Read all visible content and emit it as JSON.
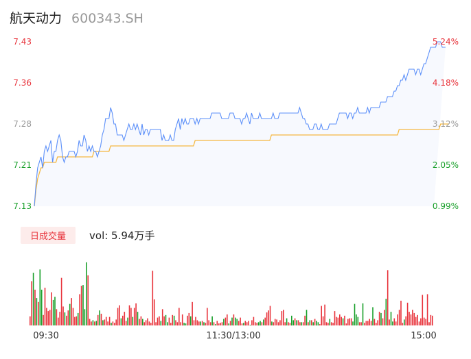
{
  "stock": {
    "name": "航天动力",
    "code": "600343.SH"
  },
  "volume_tab": {
    "label": "日成交量",
    "summary": "vol: 5.94万手"
  },
  "colors": {
    "price_line": "#5b8ff9",
    "avg_line": "#f5b942",
    "up": "#e8333b",
    "down": "#1aa02b",
    "neutral": "#999999",
    "area_fill": "#f7f9fe"
  },
  "chart_data": [
    {
      "type": "line",
      "title": "",
      "y_left_ticks": [
        "7.43",
        "7.36",
        "7.28",
        "7.21",
        "7.13"
      ],
      "y_right_ticks": [
        "5.24%",
        "4.18%",
        "3.12%",
        "2.05%",
        "0.99%"
      ],
      "y_tick_colors": [
        "up",
        "up",
        "neutral",
        "down",
        "down"
      ],
      "ylim": [
        7.13,
        7.43
      ],
      "x_points": 242,
      "series": [
        {
          "key": "price",
          "values": [
            7.13,
            7.17,
            7.2,
            7.21,
            7.22,
            7.2,
            7.23,
            7.24,
            7.23,
            7.24,
            7.25,
            7.21,
            7.23,
            7.23,
            7.25,
            7.26,
            7.25,
            7.22,
            7.21,
            7.22,
            7.22,
            7.23,
            7.23,
            7.23,
            7.23,
            7.22,
            7.23,
            7.25,
            7.24,
            7.24,
            7.26,
            7.25,
            7.23,
            7.24,
            7.23,
            7.24,
            7.23,
            7.23,
            7.22,
            7.23,
            7.24,
            7.26,
            7.27,
            7.29,
            7.29,
            7.29,
            7.31,
            7.3,
            7.28,
            7.28,
            7.26,
            7.26,
            7.26,
            7.26,
            7.25,
            7.26,
            7.27,
            7.28,
            7.27,
            7.27,
            7.28,
            7.27,
            7.28,
            7.27,
            7.26,
            7.28,
            7.26,
            7.27,
            7.27,
            7.26,
            7.27,
            7.27,
            7.27,
            7.27,
            7.27,
            7.27,
            7.27,
            7.25,
            7.26,
            7.25,
            7.25,
            7.25,
            7.26,
            7.25,
            7.25,
            7.27,
            7.28,
            7.29,
            7.27,
            7.29,
            7.28,
            7.29,
            7.28,
            7.28,
            7.29,
            7.29,
            7.29,
            7.28,
            7.29,
            7.28,
            7.29,
            7.29,
            7.29,
            7.29,
            7.29,
            7.29,
            7.29,
            7.3,
            7.3,
            7.3,
            7.3,
            7.3,
            7.3,
            7.29,
            7.29,
            7.29,
            7.29,
            7.29,
            7.3,
            7.3,
            7.3,
            7.29,
            7.29,
            7.29,
            7.29,
            7.28,
            7.29,
            7.29,
            7.3,
            7.29,
            7.28,
            7.3,
            7.29,
            7.29,
            7.29,
            7.29,
            7.3,
            7.29,
            7.29,
            7.29,
            7.29,
            7.29,
            7.29,
            7.29,
            7.3,
            7.29,
            7.29,
            7.29,
            7.3,
            7.3,
            7.3,
            7.3,
            7.3,
            7.3,
            7.3,
            7.3,
            7.3,
            7.3,
            7.3,
            7.3,
            7.31,
            7.3,
            7.29,
            7.29,
            7.28,
            7.28,
            7.27,
            7.27,
            7.27,
            7.28,
            7.28,
            7.27,
            7.27,
            7.28,
            7.27,
            7.27,
            7.27,
            7.27,
            7.28,
            7.28,
            7.28,
            7.28,
            7.28,
            7.29,
            7.3,
            7.3,
            7.3,
            7.3,
            7.3,
            7.29,
            7.3,
            7.3,
            7.29,
            7.3,
            7.3,
            7.31,
            7.3,
            7.3,
            7.3,
            7.3,
            7.3,
            7.31,
            7.3,
            7.31,
            7.31,
            7.31,
            7.31,
            7.31,
            7.31,
            7.32,
            7.32,
            7.32,
            7.32,
            7.33,
            7.33,
            7.33,
            7.33,
            7.34,
            7.34,
            7.35,
            7.35,
            7.36,
            7.36,
            7.37,
            7.36,
            7.37,
            7.38,
            7.38,
            7.38,
            7.38,
            7.37,
            7.38,
            7.38,
            7.37,
            7.38,
            7.39,
            7.39,
            7.4,
            7.41,
            7.42,
            7.42,
            7.42,
            7.42,
            7.43,
            7.43,
            7.43,
            7.42,
            7.42,
            7.42
          ]
        },
        {
          "key": "average",
          "values": [
            7.13,
            7.16,
            7.18,
            7.19,
            7.2,
            7.2,
            7.21,
            7.21,
            7.21,
            7.21,
            7.21,
            7.21,
            7.21,
            7.21,
            7.22,
            7.22,
            7.22,
            7.22,
            7.22,
            7.22,
            7.22,
            7.22,
            7.22,
            7.22,
            7.22,
            7.22,
            7.22,
            7.22,
            7.22,
            7.22,
            7.22,
            7.22,
            7.22,
            7.22,
            7.22,
            7.22,
            7.23,
            7.23,
            7.23,
            7.23,
            7.23,
            7.23,
            7.23,
            7.23,
            7.23,
            7.23,
            7.24,
            7.24,
            7.24,
            7.24,
            7.24,
            7.24,
            7.24,
            7.24,
            7.24,
            7.24,
            7.24,
            7.24,
            7.24,
            7.24,
            7.24,
            7.24,
            7.24,
            7.24,
            7.24,
            7.24,
            7.24,
            7.24,
            7.24,
            7.24,
            7.24,
            7.24,
            7.24,
            7.24,
            7.24,
            7.24,
            7.24,
            7.24,
            7.24,
            7.24,
            7.24,
            7.24,
            7.24,
            7.24,
            7.24,
            7.24,
            7.24,
            7.24,
            7.24,
            7.24,
            7.24,
            7.24,
            7.24,
            7.24,
            7.24,
            7.24,
            7.24,
            7.25,
            7.25,
            7.25,
            7.25,
            7.25,
            7.25,
            7.25,
            7.25,
            7.25,
            7.25,
            7.25,
            7.25,
            7.25,
            7.25,
            7.25,
            7.25,
            7.25,
            7.25,
            7.25,
            7.25,
            7.25,
            7.25,
            7.25,
            7.25,
            7.25,
            7.25,
            7.25,
            7.25,
            7.25,
            7.25,
            7.25,
            7.25,
            7.25,
            7.25,
            7.25,
            7.25,
            7.25,
            7.25,
            7.25,
            7.25,
            7.25,
            7.25,
            7.25,
            7.25,
            7.25,
            7.25,
            7.26,
            7.26,
            7.26,
            7.26,
            7.26,
            7.26,
            7.26,
            7.26,
            7.26,
            7.26,
            7.26,
            7.26,
            7.26,
            7.26,
            7.26,
            7.26,
            7.26,
            7.26,
            7.26,
            7.26,
            7.26,
            7.26,
            7.26,
            7.26,
            7.26,
            7.26,
            7.26,
            7.26,
            7.26,
            7.26,
            7.26,
            7.26,
            7.26,
            7.26,
            7.26,
            7.26,
            7.26,
            7.26,
            7.26,
            7.26,
            7.26,
            7.26,
            7.26,
            7.26,
            7.26,
            7.26,
            7.26,
            7.26,
            7.26,
            7.26,
            7.26,
            7.26,
            7.26,
            7.26,
            7.26,
            7.26,
            7.26,
            7.26,
            7.26,
            7.26,
            7.26,
            7.26,
            7.26,
            7.26,
            7.26,
            7.26,
            7.26,
            7.26,
            7.26,
            7.26,
            7.26,
            7.26,
            7.26,
            7.26,
            7.26,
            7.26,
            7.26,
            7.27,
            7.27,
            7.27,
            7.27,
            7.27,
            7.27,
            7.27,
            7.27,
            7.27,
            7.27,
            7.27,
            7.27,
            7.27,
            7.27,
            7.27,
            7.27,
            7.27,
            7.27,
            7.27,
            7.27,
            7.27,
            7.27,
            7.27,
            7.27,
            7.27,
            7.28,
            7.28,
            7.28,
            7.28,
            7.28,
            7.28
          ]
        }
      ]
    },
    {
      "type": "bar",
      "title": "",
      "x_tick_labels": [
        "09:30",
        "11:30/13:00",
        "15:00"
      ],
      "note": "minute volume bars, relative heights (0-1), color up/down",
      "volume_rel": [
        0.14,
        0.68,
        0.81,
        0.55,
        0.42,
        0.36,
        0.86,
        0.55,
        0.16,
        0.58,
        0.27,
        0.22,
        0.24,
        0.51,
        0.39,
        0.44,
        0.25,
        0.12,
        0.21,
        0.73,
        0.29,
        0.2,
        0.15,
        0.23,
        0.33,
        0.42,
        0.27,
        0.13,
        0.14,
        0.19,
        0.48,
        0.61,
        0.62,
        0.25,
        0.97,
        0.77,
        0.1,
        0.06,
        0.08,
        0.06,
        0.07,
        0.16,
        0.23,
        0.18,
        0.08,
        0.09,
        0.13,
        0.06,
        0.13,
        0.04,
        0.06,
        0.04,
        0.09,
        0.27,
        0.31,
        0.11,
        0.15,
        0.21,
        0.07,
        0.12,
        0.31,
        0.27,
        0.13,
        0.27,
        0.34,
        0.21,
        0.1,
        0.14,
        0.1,
        0.05,
        0.08,
        0.11,
        0.06,
        0.04,
        0.84,
        0.4,
        0.05,
        0.12,
        0.14,
        0.07,
        0.25,
        0.14,
        0.16,
        0.05,
        0.12,
        0.04,
        0.16,
        0.15,
        0.08,
        0.05,
        0.27,
        0.05,
        0.17,
        0.04,
        0.03,
        0.15,
        0.19,
        0.14,
        0.36,
        0.08,
        0.13,
        0.08,
        0.06,
        0.06,
        0.07,
        0.05,
        0.04,
        0.27,
        0.08,
        0.05,
        0.14,
        0.05,
        0.02,
        0.07,
        0.03,
        0.04,
        0.05,
        0.1,
        0.12,
        0.17,
        0.03,
        0.07,
        0.12,
        0.17,
        0.12,
        0.1,
        0.07,
        0.12,
        0.03,
        0.04,
        0.07,
        0.05,
        0.07,
        0.01,
        0.08,
        0.13,
        0.05,
        0.04,
        0.05,
        0.07,
        0.05,
        0.09,
        0.12,
        0.2,
        0.23,
        0.3,
        0.06,
        0.05,
        0.1,
        0.09,
        0.05,
        0.08,
        0.22,
        0.24,
        0.05,
        0.11,
        0.05,
        0.04,
        0.15,
        0.08,
        0.11,
        0.08,
        0.08,
        0.05,
        0.05,
        0.05,
        0.15,
        0.24,
        0.05,
        0.08,
        0.08,
        0.05,
        0.1,
        0.07,
        0.05,
        0.02,
        0.3,
        0.14,
        0.32,
        0.05,
        0.04,
        0.1,
        0.05,
        0.04,
        0.22,
        0.13,
        0.12,
        0.17,
        0.13,
        0.11,
        0.15,
        0.03,
        0.1,
        0.11,
        0.11,
        0.06,
        0.33,
        0.17,
        0.13,
        0.05,
        0.05,
        0.34,
        0.04,
        0.07,
        0.07,
        0.1,
        0.07,
        0.28,
        0.1,
        0.04,
        0.08,
        0.21,
        0.19,
        0.11,
        0.24,
        0.41,
        0.85,
        0.09,
        0.21,
        0.06,
        0.11,
        0.06,
        0.17,
        0.24,
        0.38,
        0.04,
        0.09,
        0.14,
        0.35,
        0.21,
        0.17,
        0.24,
        0.19,
        0.13,
        0.16,
        0.06,
        0.11,
        0.47,
        0.12,
        0.1,
        0.48,
        0.05,
        0.16,
        0.15
      ],
      "volume_dir": [
        "u",
        "u",
        "d",
        "u",
        "d",
        "u",
        "d",
        "d",
        "u",
        "u",
        "u",
        "u",
        "u",
        "u",
        "d",
        "d",
        "u",
        "u",
        "u",
        "u",
        "u",
        "d",
        "u",
        "u",
        "d",
        "u",
        "u",
        "u",
        "u",
        "d",
        "u",
        "u",
        "d",
        "d",
        "d",
        "u",
        "u",
        "u",
        "d",
        "u",
        "d",
        "u",
        "d",
        "u",
        "d",
        "u",
        "u",
        "u",
        "u",
        "d",
        "u",
        "u",
        "u",
        "u",
        "u",
        "d",
        "u",
        "u",
        "u",
        "d",
        "u",
        "u",
        "d",
        "u",
        "u",
        "d",
        "u",
        "u",
        "d",
        "u",
        "u",
        "u",
        "u",
        "u",
        "u",
        "u",
        "u",
        "u",
        "u",
        "d",
        "u",
        "u",
        "d",
        "d",
        "u",
        "u",
        "u",
        "d",
        "u",
        "u",
        "u",
        "u",
        "u",
        "d",
        "d",
        "u",
        "u",
        "d",
        "u",
        "u",
        "u",
        "u",
        "u",
        "d",
        "u",
        "d",
        "u",
        "u",
        "u",
        "u",
        "d",
        "u",
        "d",
        "u",
        "u",
        "u",
        "u",
        "d",
        "u",
        "u",
        "d",
        "u",
        "d",
        "u",
        "d",
        "d",
        "u",
        "u",
        "u",
        "d",
        "u",
        "u",
        "u",
        "d",
        "u",
        "u",
        "u",
        "u",
        "d",
        "d",
        "u",
        "d",
        "u",
        "u",
        "u",
        "u",
        "d",
        "u",
        "u",
        "u",
        "u",
        "u",
        "u",
        "u",
        "u",
        "d",
        "u",
        "u",
        "d",
        "d",
        "u",
        "d",
        "u",
        "u",
        "d",
        "u",
        "u",
        "d",
        "u",
        "d",
        "u",
        "d",
        "u",
        "d",
        "d",
        "u",
        "u",
        "u",
        "u",
        "u",
        "u",
        "d",
        "u",
        "u",
        "u",
        "u",
        "u",
        "u",
        "u",
        "d",
        "u",
        "u",
        "u",
        "u",
        "u",
        "d",
        "d",
        "d",
        "d",
        "u",
        "u",
        "d",
        "u",
        "u",
        "u",
        "u",
        "u",
        "d",
        "u",
        "u",
        "u",
        "u",
        "d",
        "u",
        "u",
        "d",
        "u",
        "u",
        "d",
        "d",
        "u",
        "u",
        "u",
        "u",
        "u",
        "u",
        "d",
        "u",
        "u",
        "u",
        "u",
        "u",
        "u",
        "u",
        "u",
        "u",
        "u",
        "u",
        "u",
        "u",
        "u",
        "u",
        "u",
        "u",
        "u",
        "d",
        "u",
        "d",
        "u",
        "u",
        "u",
        "u",
        "u",
        "n"
      ]
    }
  ]
}
